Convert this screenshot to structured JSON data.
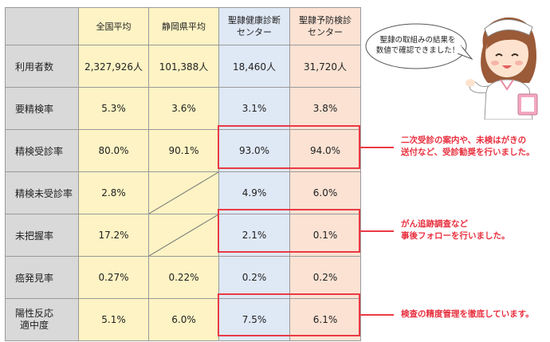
{
  "table": {
    "headers": [
      "全国平均",
      "静岡県平均",
      "聖隷健康診断\nセンター",
      "聖隷予防検診\nセンター"
    ],
    "rows": [
      {
        "label": "利用者数",
        "values": [
          "2,327,926人",
          "101,388人",
          "18,460人",
          "31,720人"
        ]
      },
      {
        "label": "要精検率",
        "values": [
          "5.3%",
          "3.6%",
          "3.1%",
          "3.8%"
        ]
      },
      {
        "label": "精検受診率",
        "values": [
          "80.0%",
          "90.1%",
          "93.0%",
          "94.0%"
        ]
      },
      {
        "label": "精検未受診率",
        "values": [
          "2.8%",
          "",
          "4.9%",
          "6.0%"
        ]
      },
      {
        "label": "未把握率",
        "values": [
          "17.2%",
          "",
          "2.1%",
          "0.1%"
        ]
      },
      {
        "label": "癌発見率",
        "values": [
          "0.27%",
          "0.22%",
          "0.2%",
          "0.2%"
        ]
      },
      {
        "label": "陽性反応\n適中度",
        "values": [
          "5.1%",
          "6.0%",
          "7.5%",
          "6.1%"
        ]
      }
    ]
  },
  "bubble_text": "聖隷の取組みの結果を\n数値で確認できました！",
  "notes": [
    "二次受診の案内や、未検はがきの\n送付など、受診勧奨を行いました。",
    "がん追跡調査など\n事後フォローを行いました。",
    "検査の精度管理を徹底しています。"
  ],
  "colors": {
    "national_bg": "#fdf3c4",
    "shizuoka_bg": "#fdf3c4",
    "kenshin_bg": "#dfe8f5",
    "yobou_bg": "#fbe2d3",
    "label_bg": "#d9d9d9",
    "highlight": "#ea3a45"
  },
  "icons": [
    "nurse-illustration",
    "speech-bubble"
  ]
}
